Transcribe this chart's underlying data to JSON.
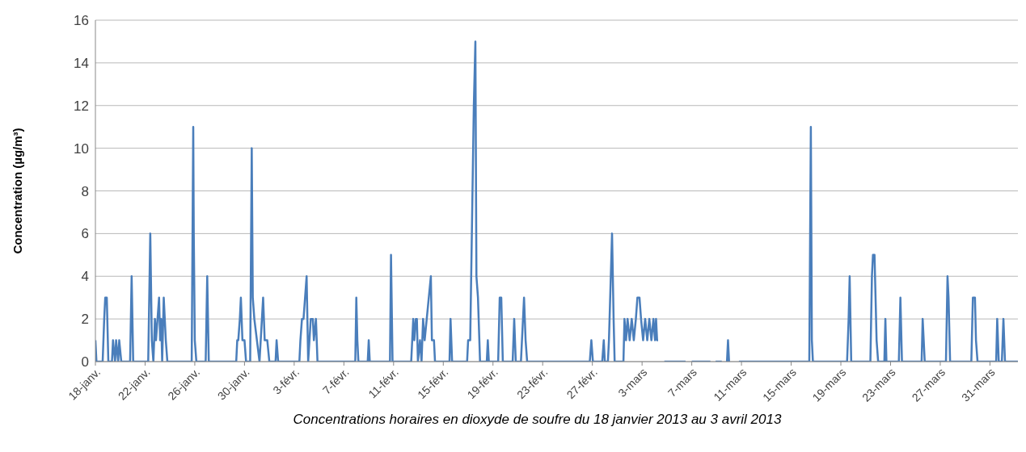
{
  "chart_data": {
    "type": "line",
    "ylabel": "Concentration (µg/m³)",
    "annotations": [
      "Concentrations horaires en dioxyde de soufre du 18 janvier 2013 au 3 avril 2013"
    ],
    "xlim": [
      "2013-01-18",
      "2013-04-02T06:00"
    ],
    "xticks": [
      {
        "value": "2013-01-18",
        "label": "18-janv."
      },
      {
        "value": "2013-01-22",
        "label": "22-janv."
      },
      {
        "value": "2013-01-26",
        "label": "26-janv."
      },
      {
        "value": "2013-01-30",
        "label": "30-janv."
      },
      {
        "value": "2013-02-03",
        "label": "3-févr."
      },
      {
        "value": "2013-02-07",
        "label": "7-févr."
      },
      {
        "value": "2013-02-11",
        "label": "11-févr."
      },
      {
        "value": "2013-02-15",
        "label": "15-févr."
      },
      {
        "value": "2013-02-19",
        "label": "19-févr."
      },
      {
        "value": "2013-02-23",
        "label": "23-févr."
      },
      {
        "value": "2013-02-27",
        "label": "27-févr."
      },
      {
        "value": "2013-03-03",
        "label": "3-mars"
      },
      {
        "value": "2013-03-07",
        "label": "7-mars"
      },
      {
        "value": "2013-03-11",
        "label": "11-mars"
      },
      {
        "value": "2013-03-15",
        "label": "15-mars"
      },
      {
        "value": "2013-03-19",
        "label": "19-mars"
      },
      {
        "value": "2013-03-23",
        "label": "23-mars"
      },
      {
        "value": "2013-03-27",
        "label": "27-mars"
      },
      {
        "value": "2013-03-31",
        "label": "31-mars"
      }
    ],
    "ylim": [
      0,
      16
    ],
    "yticks": [
      0,
      2,
      4,
      6,
      8,
      10,
      12,
      14,
      16
    ],
    "grid": "y",
    "series": [
      {
        "color": "#4a7ebb",
        "x": [
          "2013-01-18T00:00",
          "2013-01-18T02:00",
          "2013-01-18T14:00",
          "2013-01-18T17:00",
          "2013-01-18T19:00",
          "2013-01-18T22:00",
          "2013-01-19T01:00",
          "2013-01-19T08:00",
          "2013-01-19T10:00",
          "2013-01-19T14:00",
          "2013-01-19T16:00",
          "2013-01-19T20:00",
          "2013-01-19T22:00",
          "2013-01-20T02:00",
          "2013-01-20T19:00",
          "2013-01-20T22:00",
          "2013-01-21T01:00",
          "2013-01-22T06:00",
          "2013-01-22T10:00",
          "2013-01-22T13:00",
          "2013-01-22T16:00",
          "2013-01-22T19:00",
          "2013-01-22T21:00",
          "2013-01-23T00:00",
          "2013-01-23T03:00",
          "2013-01-23T05:00",
          "2013-01-23T07:00",
          "2013-01-23T09:00",
          "2013-01-23T12:00",
          "2013-01-23T14:00",
          "2013-01-23T16:00",
          "2013-01-23T19:00",
          "2013-01-25T18:00",
          "2013-01-25T21:00",
          "2013-01-25T22:00",
          "2013-01-26T00:00",
          "2013-01-26T03:00",
          "2013-01-26T21:00",
          "2013-01-27T00:00",
          "2013-01-27T03:00",
          "2013-01-29T08:00",
          "2013-01-29T10:00",
          "2013-01-29T12:00",
          "2013-01-29T15:00",
          "2013-01-29T17:00",
          "2013-01-29T20:00",
          "2013-01-30T00:00",
          "2013-01-30T03:00",
          "2013-01-30T11:00",
          "2013-01-30T14:00",
          "2013-01-30T16:00",
          "2013-01-30T19:00",
          "2013-01-31T00:00",
          "2013-01-31T05:00",
          "2013-01-31T12:00",
          "2013-01-31T15:00",
          "2013-01-31T20:00",
          "2013-02-01T00:00",
          "2013-02-01T12:00",
          "2013-02-01T14:00",
          "2013-02-01T17:00",
          "2013-02-03T10:00",
          "2013-02-03T12:00",
          "2013-02-03T15:00",
          "2013-02-03T18:00",
          "2013-02-04T00:00",
          "2013-02-04T03:00",
          "2013-02-04T08:00",
          "2013-02-04T12:00",
          "2013-02-04T14:00",
          "2013-02-04T18:00",
          "2013-02-04T21:00",
          "2013-02-07T22:00",
          "2013-02-08T00:00",
          "2013-02-08T02:00",
          "2013-02-08T04:00",
          "2013-02-08T22:00",
          "2013-02-09T00:00",
          "2013-02-09T02:00",
          "2013-02-10T17:00",
          "2013-02-10T19:00",
          "2013-02-10T22:00",
          "2013-02-12T10:00",
          "2013-02-12T12:00",
          "2013-02-12T14:00",
          "2013-02-12T16:00",
          "2013-02-12T19:00",
          "2013-02-12T21:00",
          "2013-02-12T23:00",
          "2013-02-13T03:00",
          "2013-02-13T06:00",
          "2013-02-13T09:00",
          "2013-02-13T12:00",
          "2013-02-14T00:00",
          "2013-02-14T02:00",
          "2013-02-14T06:00",
          "2013-02-14T08:00",
          "2013-02-15T12:00",
          "2013-02-15T14:00",
          "2013-02-15T17:00",
          "2013-02-16T22:00",
          "2013-02-17T00:00",
          "2013-02-17T04:00",
          "2013-02-17T11:00",
          "2013-02-17T14:00",
          "2013-02-17T16:00",
          "2013-02-17T19:00",
          "2013-02-17T23:00",
          "2013-02-18T12:00",
          "2013-02-18T14:00",
          "2013-02-18T16:00",
          "2013-02-19T10:00",
          "2013-02-19T13:00",
          "2013-02-19T16:00",
          "2013-02-19T19:00",
          "2013-02-20T14:00",
          "2013-02-20T17:00",
          "2013-02-20T20:00",
          "2013-02-21T06:00",
          "2013-02-21T08:00",
          "2013-02-21T10:00",
          "2013-02-21T12:00",
          "2013-02-21T15:00",
          "2013-02-21T18:00",
          "2013-02-26T19:00",
          "2013-02-26T22:00",
          "2013-02-27T01:00",
          "2013-02-27T19:00",
          "2013-02-27T22:00",
          "2013-02-28T00:00",
          "2013-02-28T06:00",
          "2013-02-28T08:00",
          "2013-02-28T14:00",
          "2013-02-28T17:00",
          "2013-02-28T19:00",
          "2013-03-01T12:00",
          "2013-03-01T14:00",
          "2013-03-01T17:00",
          "2013-03-01T20:00",
          "2013-03-02T00:00",
          "2013-03-02T04:00",
          "2013-03-02T08:00",
          "2013-03-02T12:00",
          "2013-03-02T15:00",
          "2013-03-02T19:00",
          "2013-03-02T22:00",
          "2013-03-03T02:00",
          "2013-03-03T06:00",
          "2013-03-03T10:00",
          "2013-03-03T14:00",
          "2013-03-03T18:00",
          "2013-03-03T22:00",
          "2013-03-04T01:00",
          "2013-03-04T03:00",
          "2013-03-04T05:00",
          "2013-03-04T07:00",
          "2013-03-04T12:00",
          "2013-03-04T19:00",
          "2013-03-06T12:00",
          "2013-03-06T18:00",
          "2013-03-07T00:00",
          "2013-03-08T12:00",
          "2013-03-08T17:00",
          "2013-03-08T22:00",
          "2013-03-09T10:00",
          "2013-03-09T15:00",
          "2013-03-09T20:00",
          "2013-03-09T22:00",
          "2013-03-10T00:00",
          "2013-03-10T08:00",
          "2013-03-10T19:00",
          "2013-03-16T11:00",
          "2013-03-16T14:00",
          "2013-03-16T16:00",
          "2013-03-16T18:00",
          "2013-03-19T12:00",
          "2013-03-19T15:00",
          "2013-03-19T17:00",
          "2013-03-19T20:00",
          "2013-03-21T09:00",
          "2013-03-21T12:00",
          "2013-03-21T14:00",
          "2013-03-21T17:00",
          "2013-03-21T21:00",
          "2013-03-22T00:00",
          "2013-03-22T12:00",
          "2013-03-22T14:00",
          "2013-03-22T16:00",
          "2013-03-23T16:00",
          "2013-03-23T19:00",
          "2013-03-23T22:00",
          "2013-03-25T12:00",
          "2013-03-25T14:00",
          "2013-03-25T16:00",
          "2013-03-25T18:00",
          "2013-03-27T11:00",
          "2013-03-27T14:00",
          "2013-03-27T16:00",
          "2013-03-27T19:00",
          "2013-03-29T12:00",
          "2013-03-29T15:00",
          "2013-03-29T19:00",
          "2013-03-29T21:00",
          "2013-03-30T00:00",
          "2013-03-31T12:00",
          "2013-03-31T14:00",
          "2013-03-31T17:00",
          "2013-03-31T23:00",
          "2013-04-01T02:00",
          "2013-04-01T05:00",
          "2013-04-02T06:00"
        ],
        "values": [
          1,
          0,
          0,
          2,
          3,
          3,
          0,
          0,
          1,
          0,
          1,
          0,
          1,
          0,
          0,
          4,
          0,
          0,
          6,
          1,
          0,
          2,
          1,
          2,
          3,
          1,
          2,
          0,
          3,
          2,
          1,
          0,
          0,
          11,
          6,
          1,
          0,
          0,
          4,
          0,
          0,
          1,
          1,
          2,
          3,
          1,
          1,
          0,
          0,
          10,
          3,
          2,
          1,
          0,
          3,
          1,
          1,
          0,
          0,
          1,
          0,
          0,
          1,
          2,
          2,
          4,
          0,
          2,
          2,
          1,
          2,
          0,
          0,
          3,
          1,
          0,
          0,
          1,
          0,
          0,
          5,
          0,
          0,
          1,
          2,
          1,
          2,
          2,
          0,
          1,
          0,
          2,
          1,
          4,
          1,
          1,
          0,
          0,
          2,
          0,
          0,
          1,
          1,
          12,
          15,
          4,
          3,
          0,
          0,
          1,
          0,
          0,
          3,
          3,
          0,
          0,
          2,
          0,
          0,
          1,
          2,
          3,
          1,
          0,
          0,
          1,
          0,
          0,
          1,
          0,
          0,
          1,
          6,
          2,
          0,
          0,
          2,
          1,
          2,
          1,
          2,
          1,
          2,
          3,
          3,
          2,
          1,
          2,
          1,
          2,
          1,
          2,
          1,
          2,
          1,
          1,
          null,
          0,
          0,
          null,
          0,
          0,
          null,
          0,
          0,
          null,
          0,
          1,
          0,
          null,
          0,
          0,
          11,
          1,
          0,
          0,
          2,
          4,
          0,
          0,
          4,
          5,
          5,
          1,
          0,
          0,
          2,
          0,
          0,
          3,
          0,
          0,
          2,
          1,
          0,
          0,
          4,
          3,
          0,
          0,
          3,
          3,
          1,
          0,
          0,
          2,
          0,
          0,
          2,
          0,
          0
        ]
      }
    ]
  }
}
